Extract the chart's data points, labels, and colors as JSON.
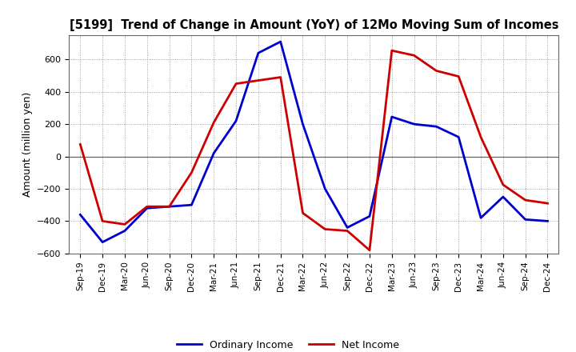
{
  "title": "[5199]  Trend of Change in Amount (YoY) of 12Mo Moving Sum of Incomes",
  "ylabel": "Amount (million yen)",
  "x_labels": [
    "Sep-19",
    "Dec-19",
    "Mar-20",
    "Jun-20",
    "Sep-20",
    "Dec-20",
    "Mar-21",
    "Jun-21",
    "Sep-21",
    "Dec-21",
    "Mar-22",
    "Jun-22",
    "Sep-22",
    "Dec-22",
    "Mar-23",
    "Jun-23",
    "Sep-23",
    "Dec-23",
    "Mar-24",
    "Jun-24",
    "Sep-24",
    "Dec-24"
  ],
  "ordinary_income": [
    -360,
    -530,
    -460,
    -320,
    -310,
    -300,
    20,
    220,
    640,
    710,
    200,
    -200,
    -440,
    -370,
    245,
    200,
    185,
    120,
    -380,
    -250,
    -390,
    -400
  ],
  "net_income": [
    75,
    -400,
    -420,
    -310,
    -310,
    -100,
    210,
    450,
    470,
    490,
    -350,
    -450,
    -460,
    -580,
    655,
    625,
    530,
    495,
    120,
    -175,
    -270,
    -290
  ],
  "ordinary_income_color": "#0000cc",
  "net_income_color": "#cc0000",
  "ylim": [
    -600,
    750
  ],
  "yticks": [
    -600,
    -400,
    -200,
    0,
    200,
    400,
    600
  ],
  "legend_labels": [
    "Ordinary Income",
    "Net Income"
  ],
  "line_width": 2.0,
  "background_color": "#ffffff",
  "grid_color": "#888888",
  "grid_style": "dotted"
}
